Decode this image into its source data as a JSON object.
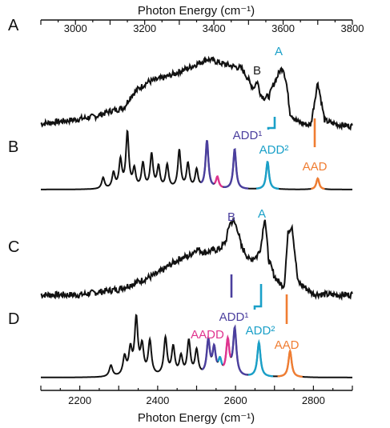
{
  "chart_data": [
    {
      "panel": "A",
      "type": "line",
      "xlabel": "Photon Energy (cm⁻¹)",
      "xlim": [
        2900,
        3800
      ],
      "xticks": [
        3000,
        3200,
        3400,
        3600,
        3800
      ],
      "tick_labels": [
        "3000",
        "3200",
        "3400",
        "3600",
        "3800"
      ],
      "annotations": [
        {
          "text": "B",
          "color": "#1a1a1a"
        },
        {
          "text": "A",
          "color": "#1aa0c8"
        }
      ],
      "x": [
        2900,
        3000,
        3060,
        3100,
        3140,
        3160,
        3180,
        3210,
        3240,
        3270,
        3300,
        3330,
        3360,
        3380,
        3400,
        3430,
        3450,
        3480,
        3500,
        3505,
        3515,
        3525,
        3535,
        3545,
        3560,
        3570,
        3580,
        3590,
        3600,
        3610,
        3620,
        3640,
        3660,
        3670,
        3680,
        3700,
        3720,
        3740,
        3760,
        3780,
        3800
      ],
      "y": [
        0.05,
        0.1,
        0.14,
        0.2,
        0.24,
        0.38,
        0.46,
        0.55,
        0.58,
        0.62,
        0.67,
        0.72,
        0.78,
        0.82,
        0.8,
        0.76,
        0.74,
        0.71,
        0.58,
        0.52,
        0.48,
        0.56,
        0.4,
        0.36,
        0.38,
        0.5,
        0.58,
        0.68,
        0.72,
        0.52,
        0.18,
        0.08,
        0.05,
        0.04,
        0.04,
        0.55,
        0.09,
        0.06,
        0.04,
        0.03,
        0.02
      ]
    },
    {
      "panel": "B",
      "type": "line",
      "annotations": [
        {
          "text": "ADD¹",
          "color": "#4b3f9e"
        },
        {
          "text": "ADD²",
          "color": "#1aa0c8"
        },
        {
          "text": "AAD",
          "color": "#f07d32"
        }
      ],
      "peaks": [
        {
          "x": 3080,
          "h": 0.18,
          "color": "#111111"
        },
        {
          "x": 3110,
          "h": 0.25,
          "color": "#111111"
        },
        {
          "x": 3130,
          "h": 0.45,
          "color": "#111111"
        },
        {
          "x": 3150,
          "h": 0.9,
          "color": "#111111"
        },
        {
          "x": 3170,
          "h": 0.3,
          "color": "#111111"
        },
        {
          "x": 3195,
          "h": 0.4,
          "color": "#111111"
        },
        {
          "x": 3220,
          "h": 0.55,
          "color": "#111111"
        },
        {
          "x": 3240,
          "h": 0.35,
          "color": "#111111"
        },
        {
          "x": 3265,
          "h": 0.38,
          "color": "#111111"
        },
        {
          "x": 3300,
          "h": 0.62,
          "color": "#111111"
        },
        {
          "x": 3325,
          "h": 0.4,
          "color": "#111111"
        },
        {
          "x": 3350,
          "h": 0.3,
          "color": "#111111"
        },
        {
          "x": 3380,
          "h": 0.78,
          "color": "#4b3f9e"
        },
        {
          "x": 3410,
          "h": 0.18,
          "color": "#e0348f"
        },
        {
          "x": 3460,
          "h": 0.65,
          "color": "#4b3f9e"
        },
        {
          "x": 3555,
          "h": 0.45,
          "color": "#1aa0c8"
        },
        {
          "x": 3700,
          "h": 0.18,
          "color": "#f07d32"
        }
      ]
    },
    {
      "panel": "C",
      "type": "line",
      "annotations": [
        {
          "text": "B",
          "color": "#4b3f9e"
        },
        {
          "text": "A",
          "color": "#1aa0c8"
        }
      ],
      "x": [
        2100,
        2200,
        2300,
        2350,
        2400,
        2430,
        2460,
        2480,
        2500,
        2520,
        2540,
        2560,
        2575,
        2585,
        2595,
        2605,
        2615,
        2625,
        2635,
        2645,
        2655,
        2665,
        2675,
        2685,
        2700,
        2715,
        2725,
        2735,
        2745,
        2760,
        2800,
        2850,
        2900
      ],
      "y": [
        0.1,
        0.1,
        0.16,
        0.24,
        0.33,
        0.42,
        0.5,
        0.52,
        0.6,
        0.56,
        0.58,
        0.6,
        0.68,
        0.88,
        0.9,
        0.82,
        0.62,
        0.56,
        0.48,
        0.5,
        0.52,
        0.62,
        0.96,
        0.48,
        0.3,
        0.22,
        0.2,
        0.78,
        0.86,
        0.24,
        0.11,
        0.1,
        0.1
      ]
    },
    {
      "panel": "D",
      "type": "line",
      "xlabel": "Photon Energy (cm⁻¹)",
      "xlim": [
        2100,
        2900
      ],
      "xticks": [
        2200,
        2400,
        2600,
        2800
      ],
      "tick_labels": [
        "2200",
        "2400",
        "2600",
        "2800"
      ],
      "annotations": [
        {
          "text": "AADD",
          "color": "#e0348f"
        },
        {
          "text": "ADD¹",
          "color": "#4b3f9e"
        },
        {
          "text": "ADD²",
          "color": "#1aa0c8"
        },
        {
          "text": "AAD",
          "color": "#f07d32"
        }
      ],
      "peaks": [
        {
          "x": 2280,
          "h": 0.18,
          "color": "#111111"
        },
        {
          "x": 2315,
          "h": 0.3,
          "color": "#111111"
        },
        {
          "x": 2330,
          "h": 0.4,
          "color": "#111111"
        },
        {
          "x": 2345,
          "h": 0.9,
          "color": "#111111"
        },
        {
          "x": 2360,
          "h": 0.45,
          "color": "#111111"
        },
        {
          "x": 2380,
          "h": 0.55,
          "color": "#111111"
        },
        {
          "x": 2420,
          "h": 0.6,
          "color": "#111111"
        },
        {
          "x": 2440,
          "h": 0.45,
          "color": "#111111"
        },
        {
          "x": 2460,
          "h": 0.3,
          "color": "#111111"
        },
        {
          "x": 2480,
          "h": 0.55,
          "color": "#111111"
        },
        {
          "x": 2500,
          "h": 0.4,
          "color": "#111111"
        },
        {
          "x": 2530,
          "h": 0.55,
          "color": "#4b3f9e"
        },
        {
          "x": 2545,
          "h": 0.42,
          "color": "#4b3f9e"
        },
        {
          "x": 2560,
          "h": 0.22,
          "color": "#1aa0c8"
        },
        {
          "x": 2580,
          "h": 0.55,
          "color": "#e0348f"
        },
        {
          "x": 2598,
          "h": 0.75,
          "color": "#4b3f9e"
        },
        {
          "x": 2660,
          "h": 0.55,
          "color": "#1aa0c8"
        },
        {
          "x": 2740,
          "h": 0.42,
          "color": "#f07d32"
        }
      ]
    }
  ],
  "panel_labels": [
    "A",
    "B",
    "C",
    "D"
  ]
}
